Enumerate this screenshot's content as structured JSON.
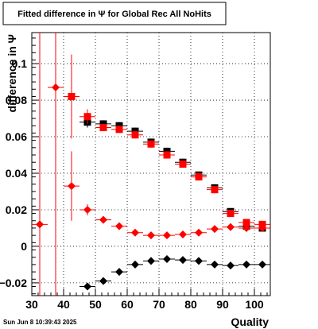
{
  "chart_data": {
    "type": "scatter",
    "title": "Fitted difference in  Ψ  for Global Rec All NoHits",
    "xlabel": "Quality",
    "ylabel": "difference in  Ψ",
    "xlim": [
      30,
      105
    ],
    "ylim": [
      -0.027,
      0.117
    ],
    "x_ticks": [
      30,
      40,
      50,
      60,
      70,
      80,
      90,
      100
    ],
    "y_ticks": [
      -0.02,
      0,
      0.02,
      0.04,
      0.06,
      0.08,
      0.1
    ],
    "y_tick_labels": [
      "−0.02",
      "0",
      "0.02",
      "0.04",
      "0.06",
      "0.08",
      "0.1"
    ],
    "grid": true,
    "timestamp": "Sun Jun  8 10:39:43 2025",
    "series": [
      {
        "marker": "square",
        "color": "#000000",
        "points": [
          {
            "x": 47.5,
            "y": 0.068,
            "err": 0.003
          },
          {
            "x": 52.5,
            "y": 0.067,
            "err": 0.002
          },
          {
            "x": 57.5,
            "y": 0.066,
            "err": 0.002
          },
          {
            "x": 62.5,
            "y": 0.063,
            "err": 0.002
          },
          {
            "x": 67.5,
            "y": 0.057,
            "err": 0.002
          },
          {
            "x": 72.5,
            "y": 0.052,
            "err": 0.002
          },
          {
            "x": 77.5,
            "y": 0.046,
            "err": 0.002
          },
          {
            "x": 82.5,
            "y": 0.039,
            "err": 0.002
          },
          {
            "x": 87.5,
            "y": 0.032,
            "err": 0.002
          },
          {
            "x": 92.5,
            "y": 0.019,
            "err": 0.001
          },
          {
            "x": 97.5,
            "y": 0.011,
            "err": 0.001
          },
          {
            "x": 102.5,
            "y": 0.01,
            "err": 0.001
          }
        ]
      },
      {
        "marker": "square",
        "color": "#ff0000",
        "points": [
          {
            "x": 42.5,
            "y": 0.082,
            "err": 0.023
          },
          {
            "x": 47.5,
            "y": 0.071,
            "err": 0.004
          },
          {
            "x": 52.5,
            "y": 0.065,
            "err": 0.002
          },
          {
            "x": 57.5,
            "y": 0.064,
            "err": 0.002
          },
          {
            "x": 62.5,
            "y": 0.061,
            "err": 0.002
          },
          {
            "x": 67.5,
            "y": 0.056,
            "err": 0.002
          },
          {
            "x": 72.5,
            "y": 0.05,
            "err": 0.002
          },
          {
            "x": 77.5,
            "y": 0.045,
            "err": 0.002
          },
          {
            "x": 82.5,
            "y": 0.038,
            "err": 0.002
          },
          {
            "x": 87.5,
            "y": 0.031,
            "err": 0.002
          },
          {
            "x": 92.5,
            "y": 0.018,
            "err": 0.001
          },
          {
            "x": 97.5,
            "y": 0.013,
            "err": 0.001
          },
          {
            "x": 102.5,
            "y": 0.012,
            "err": 0.001
          }
        ]
      },
      {
        "marker": "diamond",
        "color": "#ff0000",
        "points": [
          {
            "x": 32.5,
            "y": 0.012,
            "err": 0.2
          },
          {
            "x": 37.5,
            "y": 0.087,
            "err": 0.2
          },
          {
            "x": 42.5,
            "y": 0.033,
            "err": 0.019
          },
          {
            "x": 47.5,
            "y": 0.02,
            "err": 0.003
          },
          {
            "x": 52.5,
            "y": 0.0145,
            "err": 0.001
          },
          {
            "x": 57.5,
            "y": 0.011,
            "err": 0.001
          },
          {
            "x": 62.5,
            "y": 0.0075,
            "err": 0.001
          },
          {
            "x": 67.5,
            "y": 0.006,
            "err": 0.001
          },
          {
            "x": 72.5,
            "y": 0.006,
            "err": 0.001
          },
          {
            "x": 77.5,
            "y": 0.0065,
            "err": 0.001
          },
          {
            "x": 82.5,
            "y": 0.0075,
            "err": 0.001
          },
          {
            "x": 87.5,
            "y": 0.0095,
            "err": 0.001
          },
          {
            "x": 92.5,
            "y": 0.0105,
            "err": 0.001
          },
          {
            "x": 97.5,
            "y": 0.01,
            "err": 0.001
          },
          {
            "x": 102.5,
            "y": 0.01,
            "err": 0.001
          }
        ]
      },
      {
        "marker": "diamond",
        "color": "#000000",
        "points": [
          {
            "x": 47.5,
            "y": -0.022,
            "err": 0.001
          },
          {
            "x": 52.5,
            "y": -0.019,
            "err": 0.001
          },
          {
            "x": 57.5,
            "y": -0.014,
            "err": 0.001
          },
          {
            "x": 62.5,
            "y": -0.01,
            "err": 0.001
          },
          {
            "x": 67.5,
            "y": -0.008,
            "err": 0.001
          },
          {
            "x": 72.5,
            "y": -0.007,
            "err": 0.001
          },
          {
            "x": 77.5,
            "y": -0.0075,
            "err": 0.001
          },
          {
            "x": 82.5,
            "y": -0.008,
            "err": 0.001
          },
          {
            "x": 87.5,
            "y": -0.01,
            "err": 0.001
          },
          {
            "x": 92.5,
            "y": -0.0105,
            "err": 0.001
          },
          {
            "x": 97.5,
            "y": -0.01,
            "err": 0.001
          },
          {
            "x": 102.5,
            "y": -0.01,
            "err": 0.001
          }
        ]
      }
    ]
  }
}
